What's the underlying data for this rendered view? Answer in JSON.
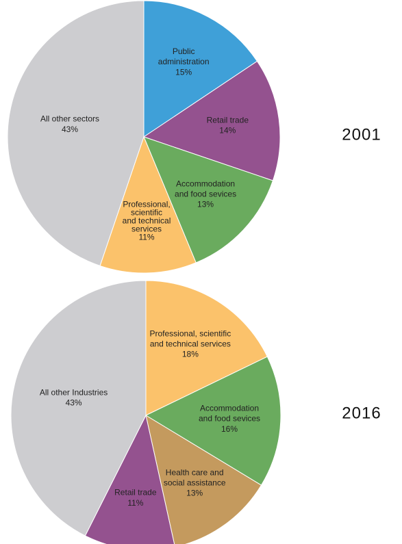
{
  "chart_data": [
    {
      "type": "pie",
      "title": "2001",
      "categories": [
        "Public\nadministration",
        "Retail trade",
        "Accommodation\nand food sevices",
        "Professional,\nscientific\nand technical\nservices",
        "All other sectors"
      ],
      "values": [
        15,
        14,
        13,
        11,
        43
      ],
      "value_labels": [
        "15%",
        "14%",
        "13%",
        "11%",
        "43%"
      ],
      "colors": [
        "#3fa0d8",
        "#94528f",
        "#6aab5e",
        "#fbc26b",
        "#cdcdd0"
      ]
    },
    {
      "type": "pie",
      "title": "2016",
      "categories": [
        "Professional, scientific\nand technical services",
        "Accommodation\nand food sevices",
        "Health care and\nsocial assistance",
        "Retail trade",
        "All other Industries"
      ],
      "values": [
        18,
        16,
        13,
        11,
        43
      ],
      "value_labels": [
        "18%",
        "16%",
        "13%",
        "11%",
        "43%"
      ],
      "colors": [
        "#fbc26b",
        "#6aab5e",
        "#c49a5e",
        "#94528f",
        "#cdcdd0"
      ]
    }
  ]
}
